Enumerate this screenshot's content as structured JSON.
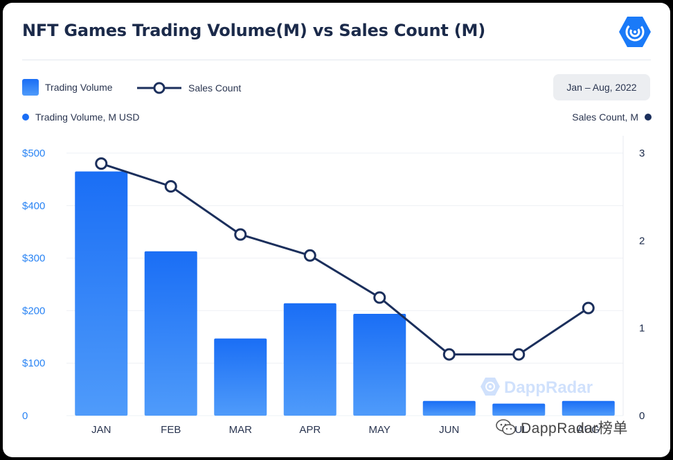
{
  "header": {
    "title": "NFT Games Trading Volume(M) vs Sales Count (M)"
  },
  "legend": {
    "bar_label": "Trading Volume",
    "line_label": "Sales Count",
    "date_range": "Jan – Aug, 2022",
    "left_axis_title": "Trading Volume, M USD",
    "right_axis_title": "Sales Count, M"
  },
  "watermark": {
    "dappradar": "DappRadar",
    "footer": "DappRadar榜单"
  },
  "colors": {
    "bar_top": "#1a6ef5",
    "bar_bottom": "#4f9bfa",
    "line": "#1b2f5c",
    "left_tick": "#2a84f4",
    "right_tick": "#1b2a4a",
    "grid": "#eef0f4"
  },
  "chart_data": {
    "type": "bar",
    "title": "NFT Games Trading Volume(M) vs Sales Count (M)",
    "categories": [
      "JAN",
      "FEB",
      "MAR",
      "APR",
      "MAY",
      "JUN",
      "JUL",
      "AUG"
    ],
    "series": [
      {
        "name": "Trading Volume",
        "type": "bar",
        "axis": "left",
        "values": [
          465,
          313,
          147,
          214,
          194,
          28,
          23,
          28
        ]
      },
      {
        "name": "Sales Count",
        "type": "line",
        "axis": "right",
        "values": [
          2.88,
          2.62,
          2.07,
          1.83,
          1.35,
          0.7,
          0.7,
          1.23
        ]
      }
    ],
    "ylabel": "Trading Volume, M USD",
    "ylabel_right": "Sales Count, M",
    "ylim": [
      0,
      500
    ],
    "ylim_right": [
      0,
      3
    ],
    "yticks": [
      "$500",
      "$400",
      "$300",
      "$200",
      "$100",
      "0"
    ],
    "yticks_right": [
      "3",
      "2",
      "1",
      "0"
    ],
    "grid": true,
    "legend_position": "top-left"
  }
}
